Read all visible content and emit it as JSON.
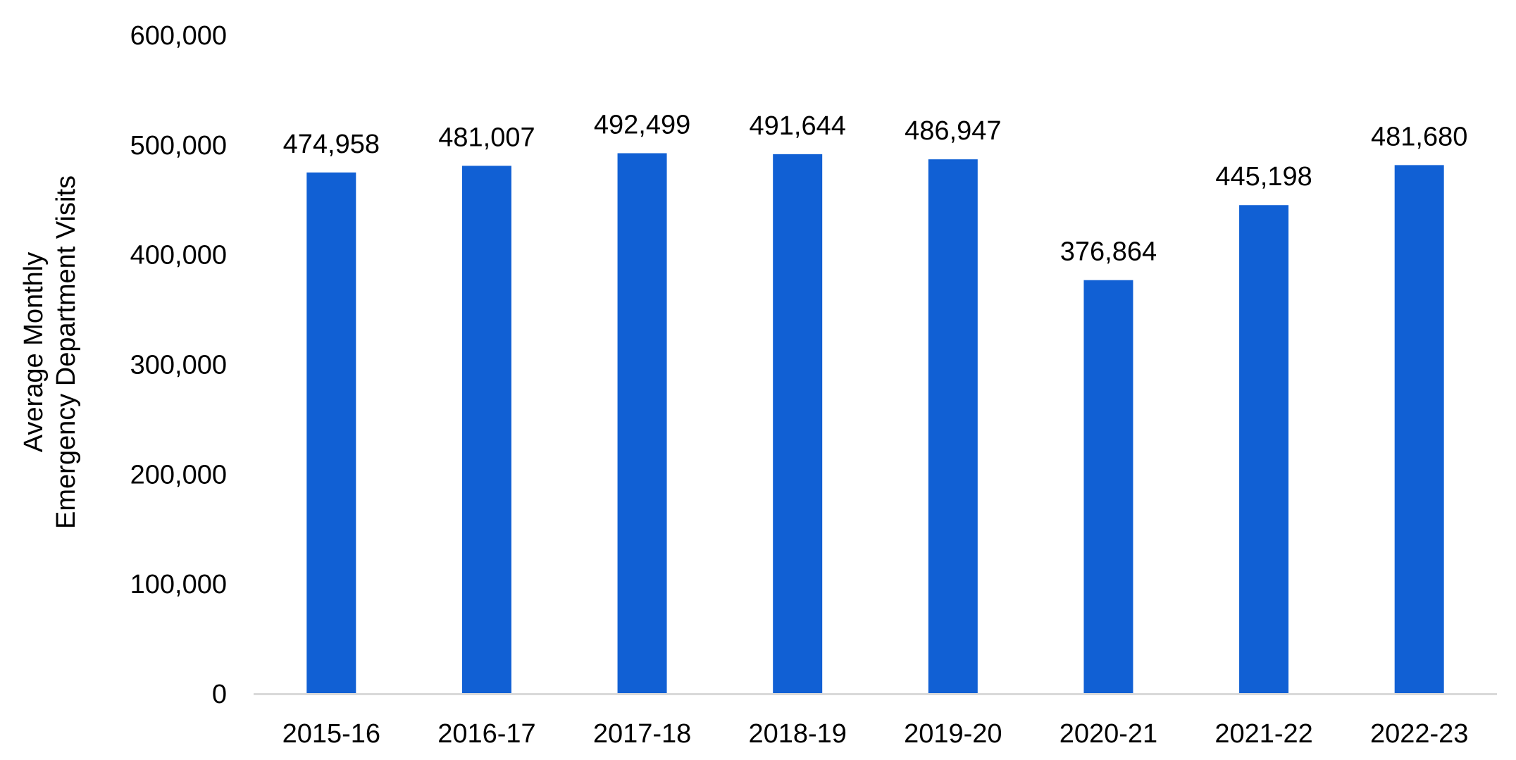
{
  "chart_data": {
    "type": "bar",
    "title": "",
    "xlabel": "",
    "ylabel_lines": [
      "Average Monthly",
      "Emergency Department Visits"
    ],
    "categories": [
      "2015-16",
      "2016-17",
      "2017-18",
      "2018-19",
      "2019-20",
      "2020-21",
      "2021-22",
      "2022-23"
    ],
    "values": [
      474958,
      481007,
      492499,
      491644,
      486947,
      376864,
      445198,
      481680
    ],
    "value_labels": [
      "474,958",
      "481,007",
      "492,499",
      "491,644",
      "486,947",
      "376,864",
      "445,198",
      "481,680"
    ],
    "ylim": [
      0,
      600000
    ],
    "yticks": [
      0,
      100000,
      200000,
      300000,
      400000,
      500000,
      600000
    ],
    "ytick_labels": [
      "0",
      "100,000",
      "200,000",
      "300,000",
      "400,000",
      "500,000",
      "600,000"
    ],
    "grid": false,
    "legend": "none",
    "bar_color": "#1160D4",
    "axis_color": "#D9D9D9"
  }
}
